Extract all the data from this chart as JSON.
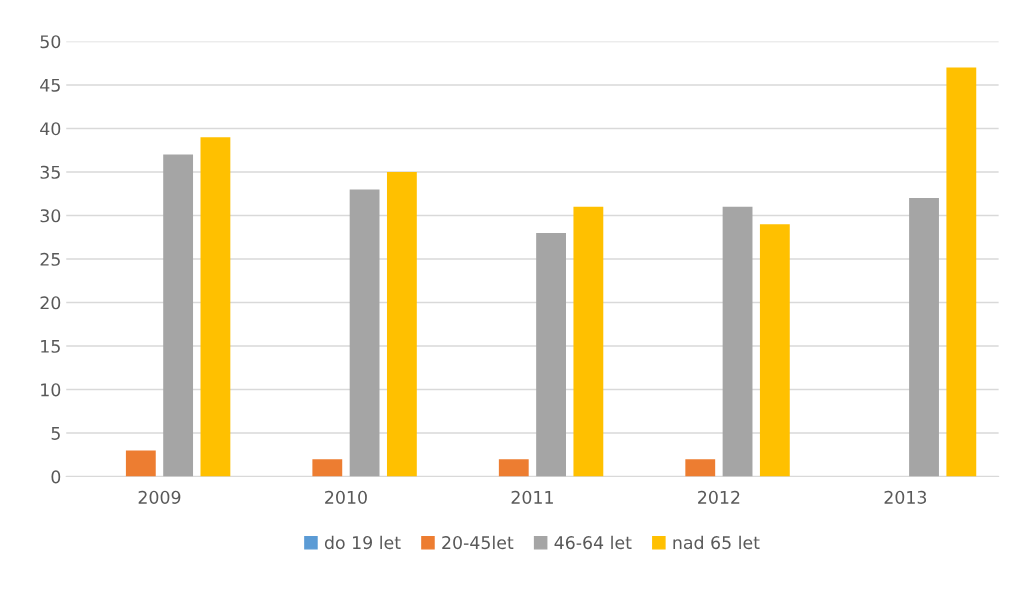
{
  "chart_data": {
    "type": "bar",
    "categories": [
      "2009",
      "2010",
      "2011",
      "2012",
      "2013"
    ],
    "series": [
      {
        "name": "do 19 let",
        "color": "#5b9bd5",
        "values": [
          0,
          0,
          0,
          0,
          0
        ]
      },
      {
        "name": "20-45let",
        "color": "#ed7d31",
        "values": [
          3,
          2,
          2,
          2,
          0
        ]
      },
      {
        "name": "46-64 let",
        "color": "#a5a5a5",
        "values": [
          37,
          33,
          28,
          31,
          32
        ]
      },
      {
        "name": "nad 65 let",
        "color": "#ffc000",
        "values": [
          39,
          35,
          31,
          29,
          47
        ]
      }
    ],
    "ylim": [
      0,
      50
    ],
    "yticks": [
      0,
      5,
      10,
      15,
      20,
      25,
      30,
      35,
      40,
      45,
      50
    ],
    "grid": "y",
    "legend": "bottom"
  }
}
